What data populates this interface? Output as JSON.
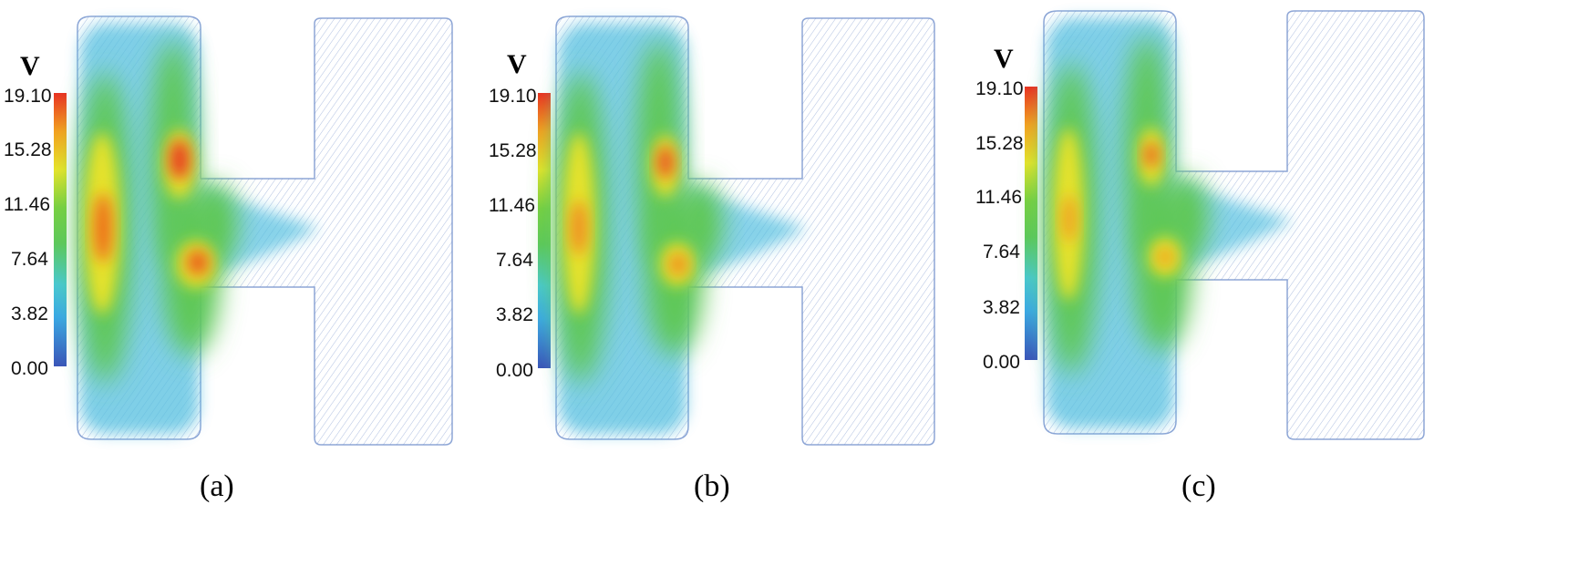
{
  "colorbar": {
    "variable": "V",
    "ticks": [
      "19.10",
      "15.28",
      "11.46",
      "7.64",
      "3.82",
      "0.00"
    ],
    "colors": [
      "#3a55b8",
      "#3aa8e6",
      "#48c8d2",
      "#5cc85a",
      "#78d040",
      "#e8e428",
      "#f4a020",
      "#e83222"
    ]
  },
  "panels": [
    {
      "caption": "(a)"
    },
    {
      "caption": "(b)"
    },
    {
      "caption": "(c)"
    }
  ]
}
